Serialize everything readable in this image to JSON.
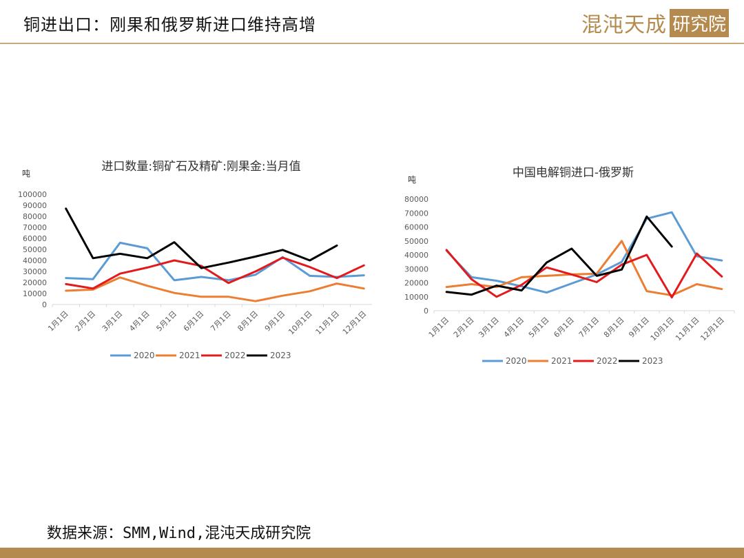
{
  "slide": {
    "title": "铜进出口：刚果和俄罗斯进口维持高增",
    "logo_main": "混沌天成",
    "logo_box": "研究院",
    "source": "数据来源：SMM,Wind,混沌天成研究院",
    "accent_color": "#b48a4e"
  },
  "chart_data": [
    {
      "type": "line",
      "title": "进口数量:铜矿石及精矿:刚果金:当月值",
      "ylabel": "吨",
      "xlabel": "",
      "categories": [
        "1月1日",
        "2月1日",
        "3月1日",
        "4月1日",
        "5月1日",
        "6月1日",
        "7月1日",
        "8月1日",
        "9月1日",
        "10月1日",
        "11月1日",
        "12月1日"
      ],
      "yticks": [
        "0",
        "10000",
        "20000",
        "30000",
        "40000",
        "50000",
        "60000",
        "70000",
        "80000",
        "90000",
        "100000"
      ],
      "ylim": [
        0,
        100000
      ],
      "grid": false,
      "legend": "bottom",
      "series": [
        {
          "name": "2020",
          "color": "#5b9bd5",
          "values": [
            24000,
            23000,
            56000,
            51000,
            22000,
            25000,
            22000,
            27000,
            43000,
            26000,
            25000,
            26500
          ]
        },
        {
          "name": "2021",
          "color": "#ed7d31",
          "values": [
            12500,
            13500,
            24500,
            17000,
            10500,
            7000,
            7000,
            3000,
            8000,
            12000,
            19000,
            14500
          ]
        },
        {
          "name": "2022",
          "color": "#e31a1c",
          "values": [
            18500,
            14500,
            28000,
            33500,
            40000,
            35000,
            19500,
            30000,
            42500,
            34000,
            24000,
            35500
          ]
        },
        {
          "name": "2023",
          "color": "#000000",
          "values": [
            87000,
            42000,
            46000,
            42000,
            56500,
            33000,
            38000,
            43500,
            49500,
            40000,
            53500,
            null
          ]
        }
      ]
    },
    {
      "type": "line",
      "title": "中国电解铜进口-俄罗斯",
      "ylabel": "吨",
      "xlabel": "",
      "categories": [
        "1月1日",
        "2月1日",
        "3月1日",
        "4月1日",
        "5月1日",
        "6月1日",
        "7月1日",
        "8月1日",
        "9月1日",
        "10月1日",
        "11月1日",
        "12月1日"
      ],
      "yticks": [
        "0",
        "10000",
        "20000",
        "30000",
        "40000",
        "50000",
        "60000",
        "70000",
        "80000"
      ],
      "ylim": [
        0,
        80000
      ],
      "grid": false,
      "legend": "bottom",
      "series": [
        {
          "name": "2020",
          "color": "#5b9bd5",
          "values": [
            43000,
            24000,
            21500,
            17500,
            13000,
            19500,
            26000,
            35000,
            66000,
            70500,
            39000,
            36000
          ]
        },
        {
          "name": "2021",
          "color": "#ed7d31",
          "values": [
            17000,
            19000,
            17000,
            24000,
            25000,
            26000,
            26500,
            50000,
            14000,
            11000,
            19000,
            15500
          ]
        },
        {
          "name": "2022",
          "color": "#e31a1c",
          "values": [
            43500,
            22500,
            10000,
            18500,
            31000,
            26000,
            20500,
            33000,
            40000,
            9500,
            41000,
            24500
          ]
        },
        {
          "name": "2023",
          "color": "#000000",
          "values": [
            13500,
            11500,
            18000,
            14500,
            34500,
            44500,
            25000,
            29500,
            67500,
            46000,
            null,
            null
          ]
        }
      ]
    }
  ]
}
